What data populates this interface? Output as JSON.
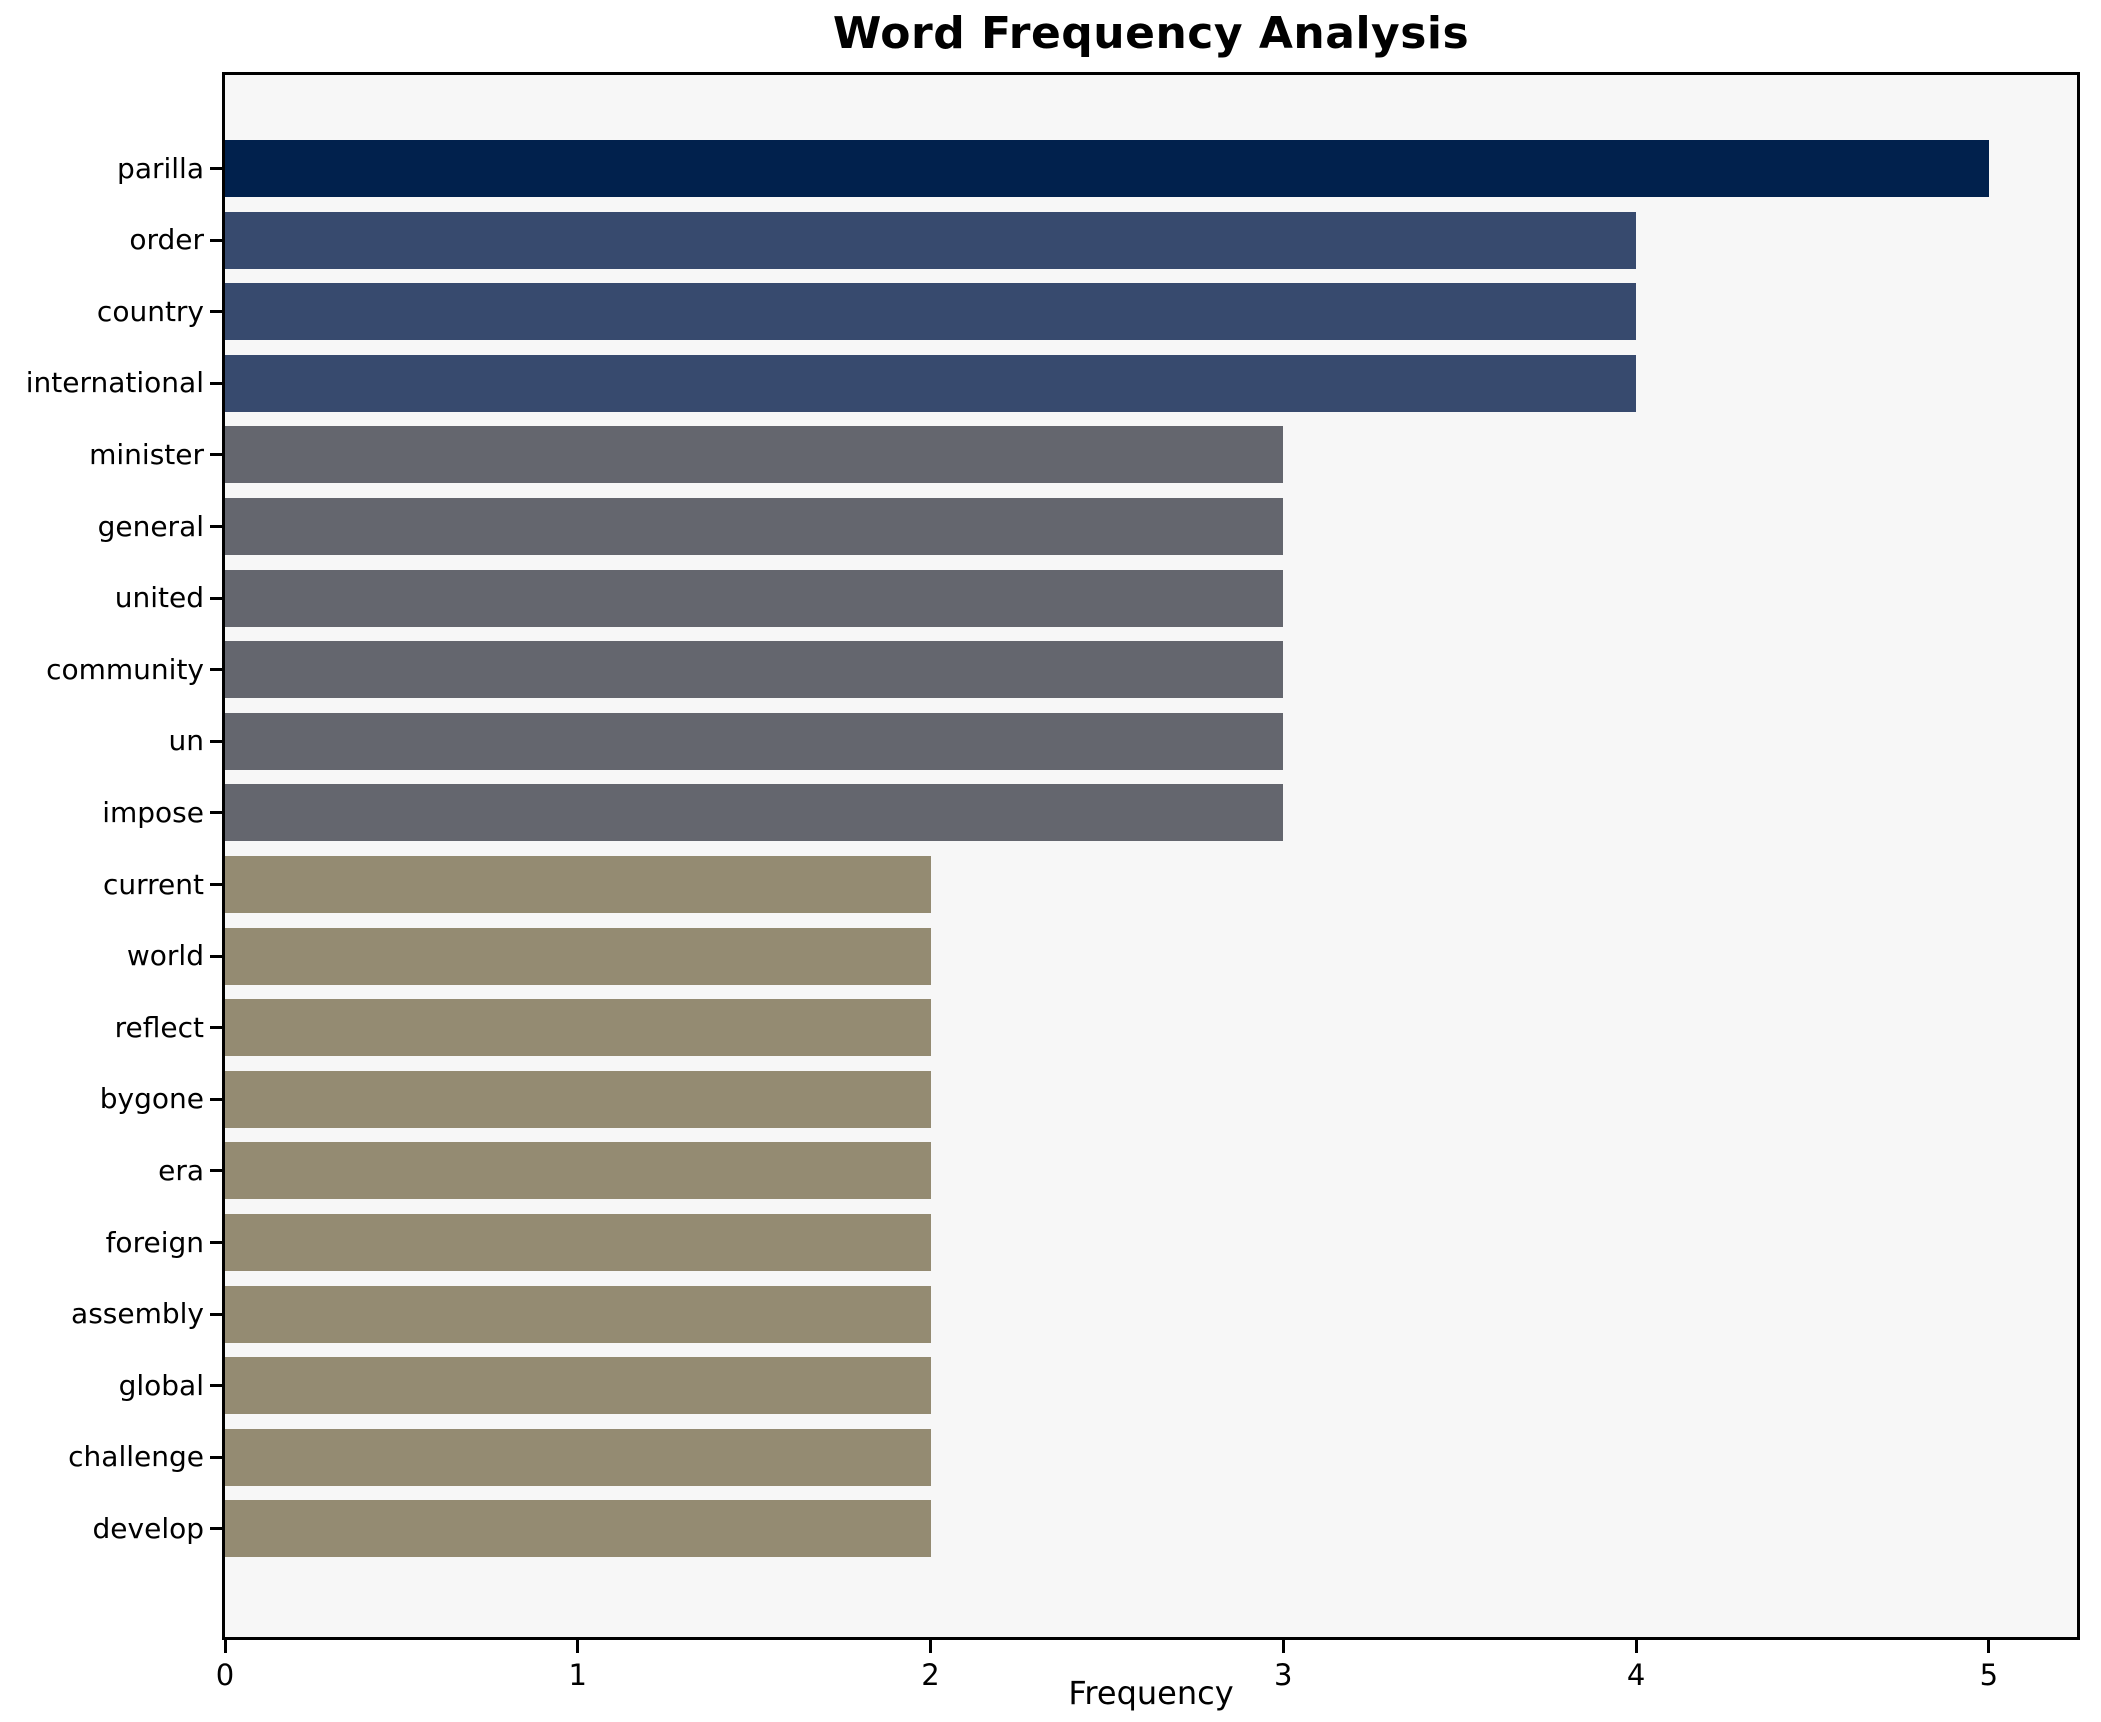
{
  "chart_data": {
    "type": "bar",
    "orientation": "horizontal",
    "title": "Word Frequency Analysis",
    "xlabel": "Frequency",
    "ylabel": "",
    "categories": [
      "parilla",
      "order",
      "country",
      "international",
      "minister",
      "general",
      "united",
      "community",
      "un",
      "impose",
      "current",
      "world",
      "reflect",
      "bygone",
      "era",
      "foreign",
      "assembly",
      "global",
      "challenge",
      "develop"
    ],
    "values": [
      5,
      4,
      4,
      4,
      3,
      3,
      3,
      3,
      3,
      3,
      2,
      2,
      2,
      2,
      2,
      2,
      2,
      2,
      2,
      2
    ],
    "bar_colors": [
      "#01214d",
      "#374a6e",
      "#374a6e",
      "#374a6e",
      "#64666e",
      "#64666e",
      "#64666e",
      "#64666e",
      "#64666e",
      "#64666e",
      "#948b72",
      "#948b72",
      "#948b72",
      "#948b72",
      "#948b72",
      "#948b72",
      "#948b72",
      "#948b72",
      "#948b72",
      "#948b72"
    ],
    "xlim": [
      0,
      5.25
    ],
    "x_ticks": [
      "0",
      "1",
      "2",
      "3",
      "4",
      "5"
    ],
    "grid": false,
    "legend": null,
    "plot_bg": "#f7f7f7",
    "figure_bg": "#ffffff",
    "spine_color": "#000000"
  }
}
